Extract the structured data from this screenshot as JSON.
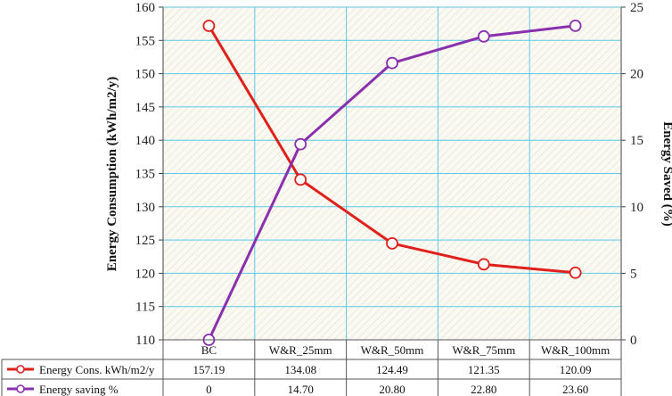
{
  "chart_data": {
    "type": "line",
    "categories": [
      "BC",
      "W&R_25mm",
      "W&R_50mm",
      "W&R_75mm",
      "W&R_100mm"
    ],
    "series": [
      {
        "name": "Energy Cons. kWh/m2/y",
        "axis": "left",
        "color": "#e0201b",
        "values": [
          157.19,
          134.08,
          124.49,
          121.35,
          120.09
        ],
        "labels": [
          "157.19",
          "134.08",
          "124.49",
          "121.35",
          "120.09"
        ]
      },
      {
        "name": "Energy saving %",
        "axis": "right",
        "color": "#8a2fae",
        "values": [
          0,
          14.7,
          20.8,
          22.8,
          23.6
        ],
        "labels": [
          "0",
          "14.70",
          "20.80",
          "22.80",
          "23.60"
        ]
      }
    ],
    "ylabel_left": "Energy Consumption (kWh/m2/y)",
    "ylabel_right": "Energy Saved (%)",
    "ylim_left": [
      110,
      160
    ],
    "yticks_left": [
      "110",
      "115",
      "120",
      "125",
      "130",
      "135",
      "140",
      "145",
      "150",
      "155",
      "160"
    ],
    "ylim_right": [
      0,
      25
    ],
    "yticks_right": [
      "0",
      "5",
      "10",
      "15",
      "20",
      "25"
    ],
    "grid": true,
    "legend": "data-table-below",
    "plot_background": "hatched-cream",
    "grid_color": "#5bc8e8"
  }
}
